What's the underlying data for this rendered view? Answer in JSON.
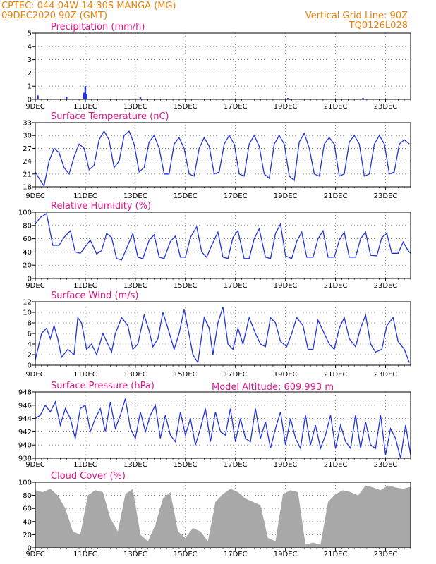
{
  "header": {
    "left_line1": "CPTEC:   044:04W-14:30S   MANGA (MG)",
    "left_line2": "09DEC2020 90Z (GMT)",
    "right_line1": "Vertical Grid Line: 90Z",
    "right_line2": "TQ0126L028",
    "model_altitude": "Model Altitude: 609.993  m"
  },
  "colors": {
    "header": "#e8820c",
    "title": "#e0158a",
    "series": "#2233dd",
    "cloud": "#a8a8a8"
  },
  "chart_data": [
    {
      "type": "bar",
      "title": "Precipitation (mm/h)",
      "ylim": [
        0,
        5
      ],
      "yticks": [
        0,
        1,
        2,
        3,
        4,
        5
      ],
      "xlim": [
        9,
        24
      ],
      "x_labels": [
        "9DEC",
        "11DEC",
        "13DEC",
        "15DEC",
        "17DEC",
        "19DEC",
        "21DEC",
        "23DEC"
      ],
      "x_label_days": [
        9,
        11,
        13,
        15,
        17,
        19,
        21,
        23
      ],
      "x": [
        9.1,
        10.25,
        10.95,
        11.0,
        11.05,
        13.2,
        19.1,
        22.1
      ],
      "values": [
        0.3,
        0.2,
        0.5,
        1.0,
        0.4,
        0.15,
        0.1,
        0.1
      ]
    },
    {
      "type": "line",
      "title": "Surface Temperature (nC)",
      "ylim": [
        18,
        33
      ],
      "yticks": [
        18,
        21,
        24,
        27,
        30,
        33
      ],
      "xlim": [
        9,
        24
      ],
      "x_labels": [
        "9DEC",
        "11DEC",
        "13DEC",
        "15DEC",
        "17DEC",
        "19DEC",
        "21DEC",
        "23DEC"
      ],
      "x_label_days": [
        9,
        11,
        13,
        15,
        17,
        19,
        21,
        23
      ],
      "x": [
        9.0,
        9.15,
        9.35,
        9.55,
        9.75,
        9.95,
        10.15,
        10.35,
        10.55,
        10.75,
        10.95,
        11.15,
        11.35,
        11.55,
        11.75,
        11.95,
        12.15,
        12.35,
        12.55,
        12.75,
        12.95,
        13.15,
        13.35,
        13.55,
        13.75,
        13.95,
        14.15,
        14.35,
        14.55,
        14.75,
        14.95,
        15.15,
        15.35,
        15.55,
        15.75,
        15.95,
        16.15,
        16.35,
        16.55,
        16.75,
        16.95,
        17.15,
        17.35,
        17.55,
        17.75,
        17.95,
        18.15,
        18.35,
        18.55,
        18.75,
        18.95,
        19.15,
        19.35,
        19.55,
        19.75,
        19.95,
        20.15,
        20.35,
        20.55,
        20.75,
        20.95,
        21.15,
        21.35,
        21.55,
        21.75,
        21.95,
        22.15,
        22.35,
        22.55,
        22.75,
        22.95,
        23.15,
        23.35,
        23.55,
        23.75,
        23.95
      ],
      "values": [
        21.5,
        20,
        18.2,
        24,
        27,
        26,
        22.5,
        21,
        25,
        28,
        27,
        22,
        23,
        29,
        31,
        29,
        22.5,
        24,
        30,
        31,
        28,
        21.5,
        22.5,
        28.5,
        30,
        27,
        21,
        21,
        28,
        29.5,
        27,
        21,
        20.5,
        27,
        29.5,
        27.5,
        21,
        21.5,
        28,
        30,
        28,
        21,
        20.5,
        28,
        30,
        27.5,
        21,
        20,
        28,
        30,
        28,
        20.5,
        19.5,
        28.5,
        30.5,
        27,
        21,
        20.5,
        28,
        29.5,
        28,
        20.5,
        21,
        28.5,
        30,
        28,
        20.5,
        21,
        28,
        30,
        28,
        21,
        21.5,
        28,
        29,
        28
      ]
    },
    {
      "type": "line",
      "title": "Relative Humidity (%)",
      "ylim": [
        0,
        100
      ],
      "yticks": [
        0,
        20,
        40,
        60,
        80,
        100
      ],
      "xlim": [
        9,
        24
      ],
      "x_labels": [
        "9DEC",
        "11DEC",
        "13DEC",
        "15DEC",
        "17DEC",
        "19DEC",
        "21DEC",
        "23DEC"
      ],
      "x_label_days": [
        9,
        11,
        13,
        15,
        17,
        19,
        21,
        23
      ],
      "x": [
        9.0,
        9.2,
        9.45,
        9.7,
        9.95,
        10.15,
        10.4,
        10.6,
        10.8,
        11.0,
        11.2,
        11.45,
        11.65,
        11.85,
        12.05,
        12.25,
        12.45,
        12.7,
        12.9,
        13.1,
        13.3,
        13.55,
        13.75,
        13.95,
        14.15,
        14.4,
        14.6,
        14.8,
        15.0,
        15.2,
        15.45,
        15.65,
        15.85,
        16.05,
        16.3,
        16.5,
        16.7,
        16.9,
        17.1,
        17.35,
        17.55,
        17.75,
        17.95,
        18.2,
        18.4,
        18.6,
        18.8,
        19.0,
        19.25,
        19.45,
        19.65,
        19.85,
        20.1,
        20.3,
        20.5,
        20.7,
        20.95,
        21.15,
        21.35,
        21.55,
        21.8,
        22.0,
        22.2,
        22.4,
        22.65,
        22.85,
        23.05,
        23.25,
        23.5,
        23.7,
        23.9,
        24.0
      ],
      "values": [
        82,
        92,
        98,
        50,
        50,
        62,
        72,
        40,
        38,
        48,
        58,
        37,
        42,
        68,
        62,
        30,
        28,
        50,
        68,
        32,
        30,
        58,
        66,
        32,
        30,
        56,
        64,
        32,
        32,
        62,
        78,
        40,
        32,
        50,
        70,
        32,
        30,
        62,
        72,
        30,
        30,
        60,
        75,
        32,
        30,
        68,
        82,
        34,
        30,
        56,
        70,
        32,
        32,
        60,
        72,
        32,
        32,
        58,
        70,
        32,
        32,
        60,
        70,
        35,
        34,
        62,
        68,
        38,
        38,
        55,
        42,
        38
      ]
    },
    {
      "type": "line",
      "title": "Surface Wind (m/s)",
      "ylim": [
        0,
        12
      ],
      "yticks": [
        0,
        2,
        4,
        6,
        8,
        10,
        12
      ],
      "xlim": [
        9,
        24
      ],
      "x_labels": [
        "9DEC",
        "11DEC",
        "13DEC",
        "15DEC",
        "17DEC",
        "19DEC",
        "21DEC",
        "23DEC"
      ],
      "x_label_days": [
        9,
        11,
        13,
        15,
        17,
        19,
        21,
        23
      ],
      "x": [
        9.0,
        9.1,
        9.25,
        9.45,
        9.6,
        9.75,
        9.9,
        10.05,
        10.3,
        10.55,
        10.7,
        10.85,
        11.05,
        11.25,
        11.45,
        11.7,
        11.9,
        12.05,
        12.2,
        12.45,
        12.7,
        12.9,
        13.1,
        13.35,
        13.55,
        13.7,
        13.9,
        14.1,
        14.3,
        14.55,
        14.75,
        14.95,
        15.1,
        15.3,
        15.5,
        15.75,
        15.95,
        16.1,
        16.3,
        16.5,
        16.7,
        16.9,
        17.1,
        17.3,
        17.55,
        17.8,
        18.0,
        18.2,
        18.4,
        18.6,
        18.8,
        19.05,
        19.25,
        19.45,
        19.7,
        19.9,
        20.1,
        20.3,
        20.5,
        20.75,
        20.95,
        21.15,
        21.35,
        21.55,
        21.8,
        22.0,
        22.2,
        22.4,
        22.6,
        22.85,
        23.05,
        23.3,
        23.5,
        23.75,
        23.95
      ],
      "values": [
        1,
        3,
        6,
        7,
        5,
        7.5,
        5,
        1.5,
        3,
        2,
        9,
        8,
        3,
        4,
        2,
        6,
        4,
        2.5,
        6,
        9,
        7.5,
        3,
        4,
        9.5,
        6.5,
        3.5,
        5,
        10,
        7,
        3,
        6,
        10.5,
        7,
        2,
        0.5,
        9,
        7,
        2,
        8,
        11,
        4,
        3,
        7,
        4,
        9,
        6,
        4,
        3.5,
        9,
        8,
        4.5,
        3.5,
        6,
        9,
        7.5,
        3,
        3,
        8.5,
        6.5,
        4,
        3,
        7,
        9,
        5,
        3.5,
        7,
        9.5,
        4,
        2.5,
        3,
        7.5,
        9,
        4.5,
        3,
        0.5
      ]
    },
    {
      "type": "line",
      "title": "Surface Pressure (hPa)",
      "ylim": [
        938,
        948
      ],
      "yticks": [
        938,
        940,
        942,
        944,
        946,
        948
      ],
      "xlim": [
        9,
        24
      ],
      "x_labels": [
        "9DEC",
        "11DEC",
        "13DEC",
        "15DEC",
        "17DEC",
        "19DEC",
        "21DEC",
        "23DEC"
      ],
      "x_label_days": [
        9,
        11,
        13,
        15,
        17,
        19,
        21,
        23
      ],
      "x": [
        9.0,
        9.2,
        9.4,
        9.6,
        9.8,
        10.0,
        10.2,
        10.4,
        10.6,
        10.8,
        11.0,
        11.2,
        11.4,
        11.6,
        11.8,
        12.0,
        12.2,
        12.4,
        12.6,
        12.8,
        13.0,
        13.2,
        13.4,
        13.6,
        13.8,
        14.0,
        14.2,
        14.4,
        14.6,
        14.8,
        15.0,
        15.2,
        15.4,
        15.6,
        15.8,
        16.0,
        16.2,
        16.4,
        16.6,
        16.8,
        17.0,
        17.2,
        17.4,
        17.6,
        17.8,
        18.0,
        18.2,
        18.4,
        18.6,
        18.8,
        19.0,
        19.2,
        19.4,
        19.6,
        19.8,
        20.0,
        20.2,
        20.4,
        20.6,
        20.8,
        21.0,
        21.2,
        21.4,
        21.6,
        21.8,
        22.0,
        22.2,
        22.4,
        22.6,
        22.8,
        23.0,
        23.2,
        23.4,
        23.6,
        23.8,
        24.0
      ],
      "values": [
        944,
        944.5,
        946,
        945,
        946.5,
        943,
        945.5,
        944,
        941,
        945.5,
        946,
        942,
        944,
        945.5,
        942,
        946.5,
        942.5,
        944.5,
        947,
        942.5,
        941,
        945,
        942,
        944.5,
        946,
        941,
        944.5,
        941.5,
        940.5,
        945,
        941.5,
        944,
        940,
        942.5,
        945.5,
        940.5,
        945,
        942,
        941.5,
        945.5,
        940.5,
        944,
        941,
        940.5,
        945.5,
        941,
        943.5,
        939.5,
        942.5,
        945,
        940,
        944,
        941,
        939.5,
        944.5,
        940,
        943,
        939.5,
        941.5,
        944.5,
        939.5,
        943,
        940.5,
        939.5,
        944.5,
        939.5,
        943.5,
        940,
        939.5,
        944.5,
        938.5,
        942.5,
        941,
        938,
        943,
        938.5
      ]
    },
    {
      "type": "area",
      "title": "Cloud Cover (%)",
      "ylim": [
        0,
        100
      ],
      "yticks": [
        0,
        20,
        40,
        60,
        80,
        100
      ],
      "xlim": [
        9,
        24
      ],
      "x_labels": [
        "9DEC",
        "11DEC",
        "13DEC",
        "15DEC",
        "17DEC",
        "19DEC",
        "21DEC",
        "23DEC"
      ],
      "x_label_days": [
        9,
        11,
        13,
        15,
        17,
        19,
        21,
        23
      ],
      "x": [
        9.0,
        9.3,
        9.6,
        9.9,
        10.2,
        10.5,
        10.8,
        11.1,
        11.4,
        11.7,
        12.0,
        12.3,
        12.6,
        12.9,
        13.2,
        13.5,
        13.8,
        14.1,
        14.4,
        14.7,
        15.0,
        15.3,
        15.6,
        15.9,
        16.2,
        16.5,
        16.8,
        17.1,
        17.4,
        17.7,
        18.0,
        18.3,
        18.6,
        18.9,
        19.2,
        19.5,
        19.8,
        20.1,
        20.4,
        20.7,
        21.0,
        21.3,
        21.6,
        21.9,
        22.2,
        22.5,
        22.8,
        23.1,
        23.4,
        23.7,
        24.0
      ],
      "values": [
        88,
        85,
        90,
        80,
        60,
        25,
        20,
        80,
        88,
        85,
        45,
        25,
        82,
        90,
        20,
        10,
        35,
        75,
        85,
        25,
        15,
        30,
        25,
        10,
        70,
        82,
        90,
        85,
        75,
        70,
        65,
        15,
        10,
        82,
        88,
        85,
        5,
        8,
        5,
        70,
        82,
        88,
        85,
        80,
        95,
        92,
        88,
        95,
        92,
        90,
        93
      ]
    }
  ]
}
